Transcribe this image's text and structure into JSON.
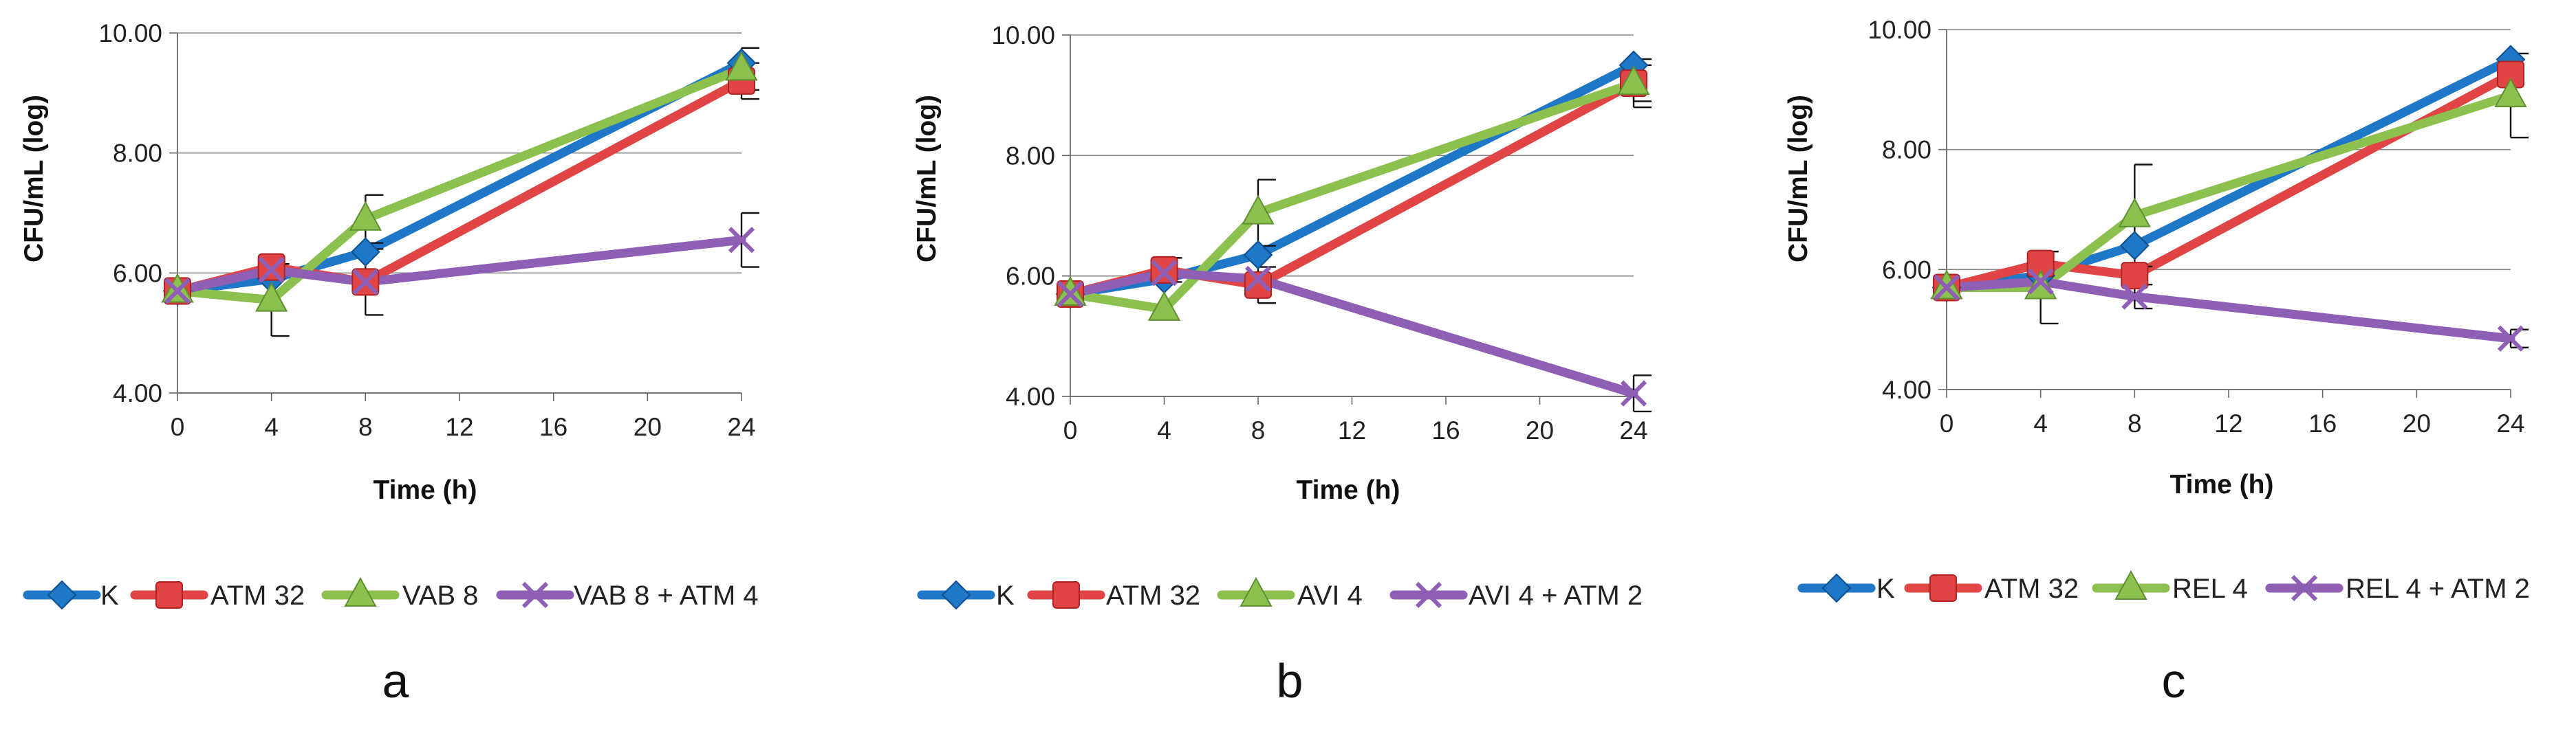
{
  "series_styles": {
    "K": {
      "color": "#1f77c8",
      "marker": "diamond"
    },
    "ATM": {
      "color": "#e04444",
      "marker": "square"
    },
    "DRUG": {
      "color": "#8cc04f",
      "marker": "triangle"
    },
    "COMBO": {
      "color": "#8f5fb5",
      "marker": "x"
    }
  },
  "chart_data": [
    {
      "type": "line",
      "panel_label": "a",
      "xlabel": "Time (h)",
      "ylabel": "CFU/mL (log)",
      "x": [
        0,
        4,
        8,
        24
      ],
      "xticks": [
        "0",
        "4",
        "8",
        "12",
        "16",
        "20",
        "24"
      ],
      "xlim": [
        0,
        24
      ],
      "yticks": [
        "4.00",
        "6.00",
        "8.00",
        "10.00"
      ],
      "ylim": [
        4,
        10
      ],
      "legend_position": "bottom",
      "series": [
        {
          "name": "K",
          "style": "K",
          "values": [
            5.7,
            5.9,
            6.35,
            9.5
          ],
          "err": [
            0,
            0,
            0,
            0
          ]
        },
        {
          "name": "ATM 32",
          "style": "ATM",
          "values": [
            5.7,
            6.1,
            5.85,
            9.2
          ],
          "err": [
            0,
            0,
            0,
            0.3
          ]
        },
        {
          "name": "VAB 8",
          "style": "DRUG",
          "values": [
            5.7,
            5.55,
            6.9,
            9.4
          ],
          "err": [
            0,
            0.6,
            0.4,
            0.35
          ]
        },
        {
          "name": "VAB 8 + ATM 4",
          "style": "COMBO",
          "values": [
            5.7,
            6.05,
            5.85,
            6.55
          ],
          "err": [
            0,
            0,
            0.55,
            0.45
          ]
        }
      ]
    },
    {
      "type": "line",
      "panel_label": "b",
      "xlabel": "Time (h)",
      "ylabel": "CFU/mL (log)",
      "x": [
        0,
        4,
        8,
        24
      ],
      "xticks": [
        "0",
        "4",
        "8",
        "12",
        "16",
        "20",
        "24"
      ],
      "xlim": [
        0,
        24
      ],
      "yticks": [
        "4.00",
        "6.00",
        "8.00",
        "10.00"
      ],
      "ylim": [
        4,
        10
      ],
      "legend_position": "bottom",
      "series": [
        {
          "name": "K",
          "style": "K",
          "values": [
            5.7,
            5.95,
            6.35,
            9.5
          ],
          "err": [
            0,
            0,
            0,
            0
          ]
        },
        {
          "name": "ATM 32",
          "style": "ATM",
          "values": [
            5.7,
            6.1,
            5.85,
            9.2
          ],
          "err": [
            0,
            0.2,
            0.3,
            0.3
          ]
        },
        {
          "name": "AVI 4",
          "style": "DRUG",
          "values": [
            5.7,
            5.45,
            7.05,
            9.2
          ],
          "err": [
            0,
            0,
            0.55,
            0.4
          ]
        },
        {
          "name": "AVI 4 + ATM 2",
          "style": "COMBO",
          "values": [
            5.7,
            6.05,
            5.95,
            4.05
          ],
          "err": [
            0,
            0,
            0,
            0.3
          ]
        }
      ]
    },
    {
      "type": "line",
      "panel_label": "c",
      "xlabel": "Time (h)",
      "ylabel": "CFU/mL (log)",
      "x": [
        0,
        4,
        8,
        24
      ],
      "xticks": [
        "0",
        "4",
        "8",
        "12",
        "16",
        "20",
        "24"
      ],
      "xlim": [
        0,
        24
      ],
      "yticks": [
        "4.00",
        "6.00",
        "8.00",
        "10.00"
      ],
      "ylim": [
        4,
        10
      ],
      "legend_position": "bottom",
      "series": [
        {
          "name": "K",
          "style": "K",
          "values": [
            5.7,
            5.9,
            6.4,
            9.5
          ],
          "err": [
            0,
            0,
            0,
            0
          ]
        },
        {
          "name": "ATM 32",
          "style": "ATM",
          "values": [
            5.7,
            6.1,
            5.9,
            9.25
          ],
          "err": [
            0,
            0,
            0,
            0
          ]
        },
        {
          "name": "REL 4",
          "style": "DRUG",
          "values": [
            5.7,
            5.7,
            6.9,
            8.9
          ],
          "err": [
            0,
            0.6,
            0.85,
            0.7
          ]
        },
        {
          "name": "REL 4 + ATM 2",
          "style": "COMBO",
          "values": [
            5.7,
            5.8,
            5.55,
            4.85
          ],
          "err": [
            0,
            0,
            0.2,
            0.15
          ]
        }
      ]
    }
  ]
}
